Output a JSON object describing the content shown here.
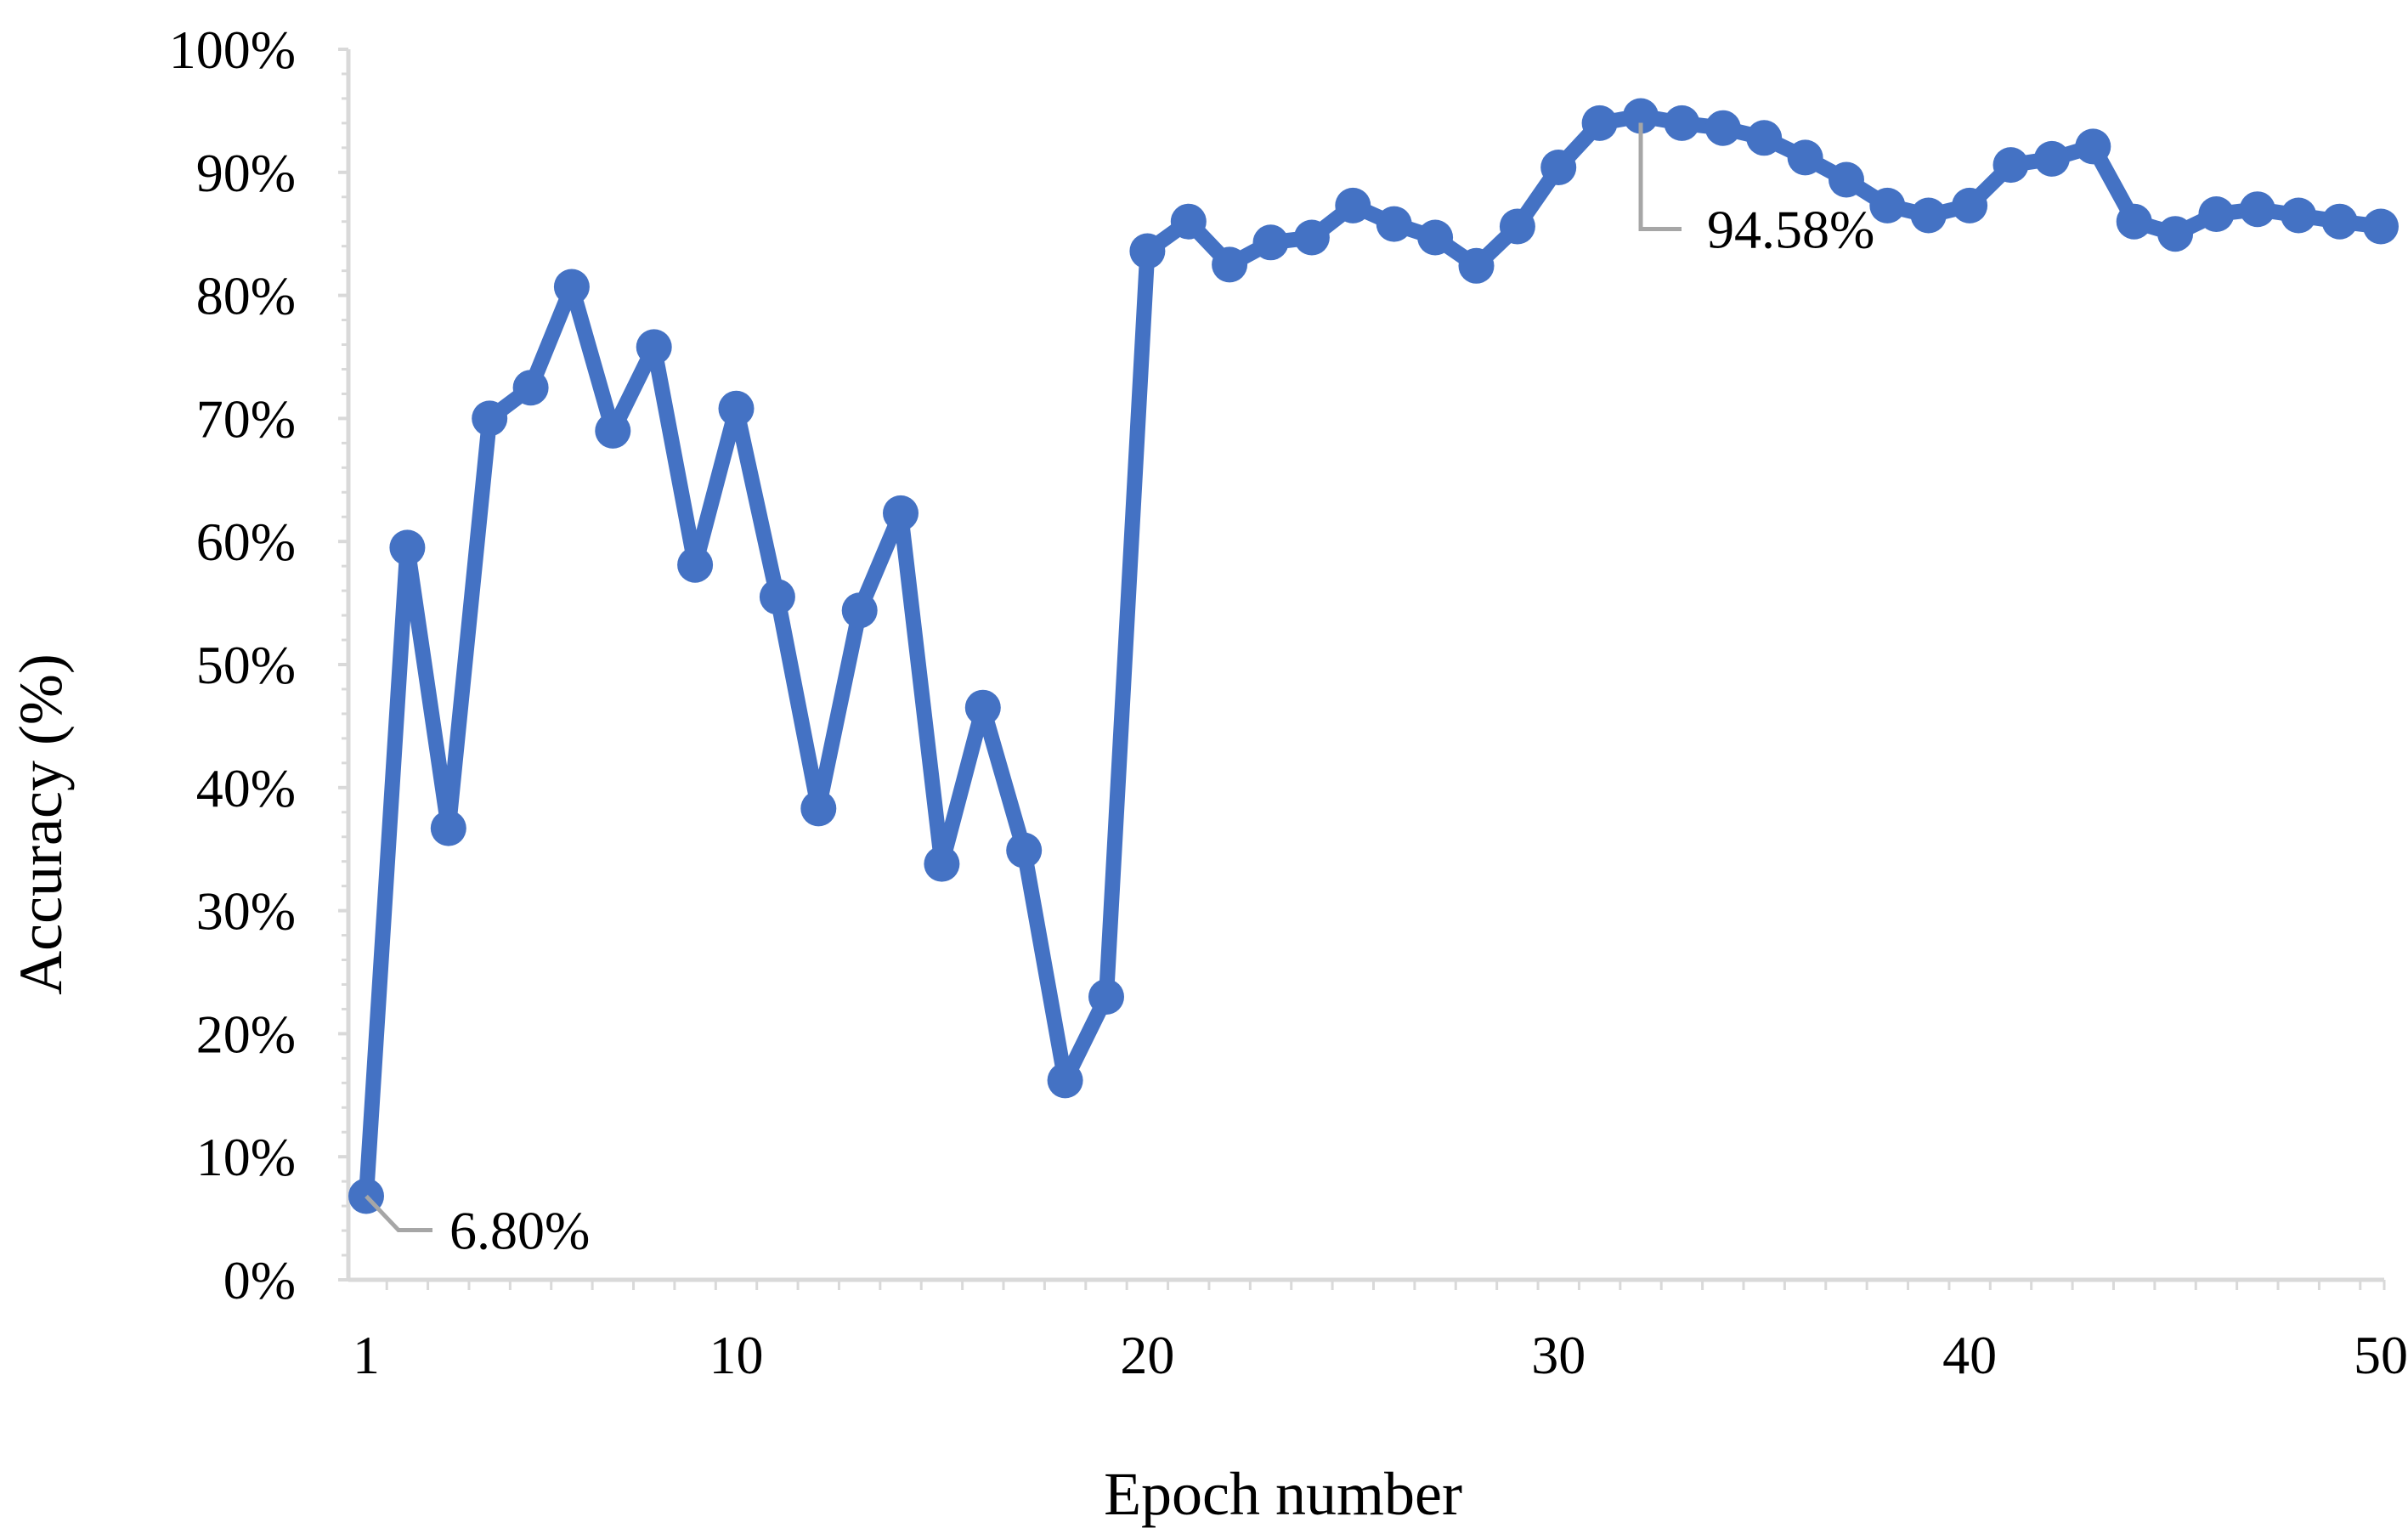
{
  "chart_data": {
    "type": "line",
    "title": "",
    "xlabel": "Epoch number",
    "ylabel": "Accuracy (%)",
    "xlim": [
      1,
      50
    ],
    "ylim": [
      0,
      100
    ],
    "x_ticks": [
      1,
      10,
      20,
      30,
      40,
      50
    ],
    "x_tick_labels": [
      "1",
      "10",
      "20",
      "30",
      "40",
      "50"
    ],
    "y_ticks": [
      0,
      10,
      20,
      30,
      40,
      50,
      60,
      70,
      80,
      90,
      100
    ],
    "y_tick_labels": [
      "0%",
      "10%",
      "20%",
      "30%",
      "40%",
      "50%",
      "60%",
      "70%",
      "80%",
      "90%",
      "100%"
    ],
    "grid": false,
    "legend": "none",
    "colors": {
      "series": "#4472C4",
      "axis": "#D9D9D9",
      "leader": "#A6A6A6"
    },
    "series": [
      {
        "x": [
          1,
          2,
          3,
          4,
          5,
          6,
          7,
          8,
          9,
          10,
          11,
          12,
          13,
          14,
          15,
          16,
          17,
          18,
          19,
          20,
          21,
          22,
          23,
          24,
          25,
          26,
          27,
          28,
          29,
          30,
          31,
          32,
          33,
          34,
          35,
          36,
          37,
          38,
          39,
          40,
          41,
          42,
          43,
          44,
          45,
          46,
          47,
          48,
          49,
          50
        ],
        "values": [
          6.8,
          59.5,
          36.7,
          70.0,
          72.5,
          80.7,
          69.0,
          75.8,
          58.1,
          70.8,
          55.5,
          38.3,
          54.4,
          62.3,
          33.8,
          46.5,
          34.9,
          16.2,
          23.0,
          83.6,
          86.0,
          82.5,
          84.3,
          84.7,
          87.3,
          85.8,
          84.7,
          82.4,
          85.6,
          90.4,
          94.0,
          94.58,
          94.0,
          93.6,
          92.8,
          91.2,
          89.4,
          87.3,
          86.5,
          87.3,
          90.6,
          91.1,
          92.1,
          86.0,
          85.0,
          86.6,
          87.0,
          86.5,
          86.0,
          85.6
        ]
      }
    ],
    "annotations": [
      {
        "x": 1,
        "y": 6.8,
        "text": "6.80%"
      },
      {
        "x": 32,
        "y": 94.58,
        "text": "94.58%"
      }
    ]
  }
}
